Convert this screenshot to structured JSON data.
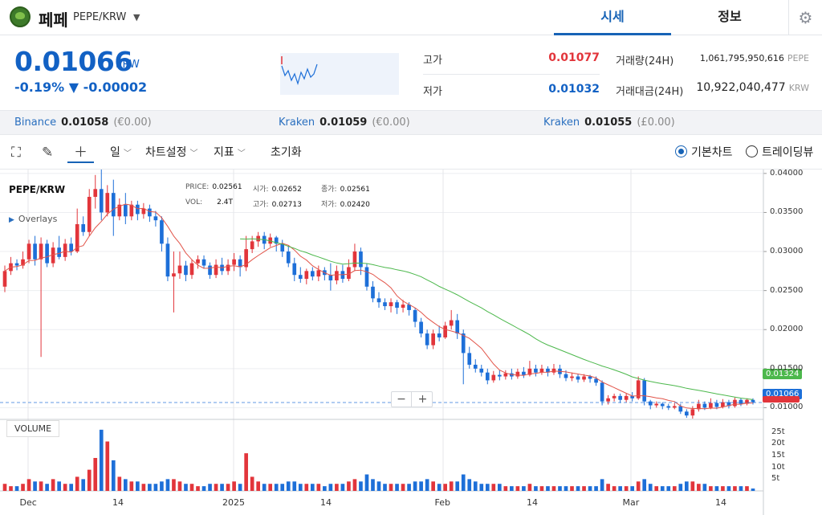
{
  "header": {
    "coin_name": "페페",
    "pair": "PEPE/KRW",
    "tabs": [
      "시세",
      "정보"
    ]
  },
  "price": {
    "current": "0.01066",
    "unit": "KRW",
    "change": "-0.19% ▼ -0.00002"
  },
  "stats": {
    "high_label": "고가",
    "high_value": "0.01077",
    "low_label": "저가",
    "low_value": "0.01032",
    "vol_label": "거래량(24H)",
    "vol_value": "1,061,795,950,616",
    "vol_unit": "PEPE",
    "amount_label": "거래대금(24H)",
    "amount_value": "10,922,040,477",
    "amount_unit": "KRW"
  },
  "exchanges": [
    {
      "name": "Binance",
      "price": "0.01058",
      "fx": "(€0.00)"
    },
    {
      "name": "Kraken",
      "price": "0.01059",
      "fx": "(€0.00)"
    },
    {
      "name": "Kraken",
      "price": "0.01055",
      "fx": "(£0.00)"
    }
  ],
  "toolbar": {
    "interval": "일",
    "chart_settings": "차트설정",
    "indicators": "지표",
    "reset": "초기화",
    "basic_chart": "기본차트",
    "tradingview": "트레이딩뷰"
  },
  "legend": {
    "pair": "PEPE/KRW",
    "overlays": "Overlays",
    "price_label": "PRICE:",
    "price_value": "0.02561",
    "open_label": "시가:",
    "open_value": "0.02652",
    "close_label": "종가:",
    "close_value": "0.02561",
    "vol_label": "VOL:",
    "vol_value": "2.4T",
    "high_label": "고가:",
    "high_value": "0.02713",
    "low_label": "저가:",
    "low_value": "0.02420",
    "volume_panel": "VOLUME"
  },
  "tags": {
    "ma_long": "0.01324",
    "current": "0.01066"
  },
  "colors": {
    "up": "#e2353b",
    "down": "#1d6fd8",
    "ma_short": "#e2554a",
    "ma_long": "#4cb84c",
    "accent": "#1763b6"
  },
  "chart_data": {
    "type": "candlestick",
    "y_ticks": [
      "0.04000",
      "0.03500",
      "0.03000",
      "0.02500",
      "0.02000",
      "0.01500",
      "0.01000"
    ],
    "ylim": [
      0.0085,
      0.0405
    ],
    "volume_ticks": [
      "25t",
      "20t",
      "15t",
      "10t",
      "5t"
    ],
    "x_ticks": [
      "Dec",
      "14",
      "2025",
      "14",
      "Feb",
      "14",
      "Mar",
      "14"
    ],
    "candles": [
      {
        "o": 0.0255,
        "c": 0.0275,
        "h": 0.0282,
        "l": 0.0248,
        "v": 3
      },
      {
        "o": 0.0275,
        "c": 0.0285,
        "h": 0.0293,
        "l": 0.027,
        "v": 2
      },
      {
        "o": 0.0285,
        "c": 0.0282,
        "h": 0.029,
        "l": 0.0276,
        "v": 2
      },
      {
        "o": 0.0282,
        "c": 0.029,
        "h": 0.03,
        "l": 0.0278,
        "v": 3
      },
      {
        "o": 0.029,
        "c": 0.031,
        "h": 0.0315,
        "l": 0.0285,
        "v": 5
      },
      {
        "o": 0.031,
        "c": 0.029,
        "h": 0.032,
        "l": 0.0282,
        "v": 4
      },
      {
        "o": 0.029,
        "c": 0.031,
        "h": 0.0318,
        "l": 0.0165,
        "v": 4
      },
      {
        "o": 0.031,
        "c": 0.0285,
        "h": 0.0315,
        "l": 0.028,
        "v": 3
      },
      {
        "o": 0.0285,
        "c": 0.0305,
        "h": 0.0312,
        "l": 0.028,
        "v": 5
      },
      {
        "o": 0.0305,
        "c": 0.0293,
        "h": 0.032,
        "l": 0.029,
        "v": 4
      },
      {
        "o": 0.0293,
        "c": 0.031,
        "h": 0.0316,
        "l": 0.0288,
        "v": 3
      },
      {
        "o": 0.031,
        "c": 0.03,
        "h": 0.0318,
        "l": 0.0295,
        "v": 3
      },
      {
        "o": 0.03,
        "c": 0.0335,
        "h": 0.0355,
        "l": 0.0298,
        "v": 6
      },
      {
        "o": 0.0335,
        "c": 0.0325,
        "h": 0.0345,
        "l": 0.032,
        "v": 5
      },
      {
        "o": 0.0325,
        "c": 0.037,
        "h": 0.038,
        "l": 0.032,
        "v": 9
      },
      {
        "o": 0.037,
        "c": 0.038,
        "h": 0.0398,
        "l": 0.0355,
        "v": 14
      },
      {
        "o": 0.038,
        "c": 0.035,
        "h": 0.0405,
        "l": 0.034,
        "v": 26
      },
      {
        "o": 0.035,
        "c": 0.0375,
        "h": 0.0385,
        "l": 0.0345,
        "v": 21
      },
      {
        "o": 0.0375,
        "c": 0.0345,
        "h": 0.0392,
        "l": 0.032,
        "v": 13
      },
      {
        "o": 0.0345,
        "c": 0.036,
        "h": 0.0368,
        "l": 0.034,
        "v": 6
      },
      {
        "o": 0.036,
        "c": 0.0345,
        "h": 0.0375,
        "l": 0.0335,
        "v": 5
      },
      {
        "o": 0.0345,
        "c": 0.036,
        "h": 0.0365,
        "l": 0.034,
        "v": 4
      },
      {
        "o": 0.036,
        "c": 0.0348,
        "h": 0.0365,
        "l": 0.034,
        "v": 4
      },
      {
        "o": 0.0348,
        "c": 0.0355,
        "h": 0.0362,
        "l": 0.0342,
        "v": 3
      },
      {
        "o": 0.0355,
        "c": 0.0345,
        "h": 0.036,
        "l": 0.0338,
        "v": 3
      },
      {
        "o": 0.0345,
        "c": 0.034,
        "h": 0.0352,
        "l": 0.0332,
        "v": 3
      },
      {
        "o": 0.034,
        "c": 0.031,
        "h": 0.0345,
        "l": 0.03,
        "v": 4
      },
      {
        "o": 0.031,
        "c": 0.0268,
        "h": 0.0318,
        "l": 0.0262,
        "v": 5
      },
      {
        "o": 0.0268,
        "c": 0.0272,
        "h": 0.03,
        "l": 0.0222,
        "v": 5
      },
      {
        "o": 0.0272,
        "c": 0.0282,
        "h": 0.03,
        "l": 0.0265,
        "v": 4
      },
      {
        "o": 0.0282,
        "c": 0.027,
        "h": 0.0288,
        "l": 0.0262,
        "v": 3
      },
      {
        "o": 0.027,
        "c": 0.0285,
        "h": 0.029,
        "l": 0.0265,
        "v": 3
      },
      {
        "o": 0.0285,
        "c": 0.029,
        "h": 0.0295,
        "l": 0.0278,
        "v": 2
      },
      {
        "o": 0.029,
        "c": 0.0282,
        "h": 0.0295,
        "l": 0.0278,
        "v": 2
      },
      {
        "o": 0.0282,
        "c": 0.027,
        "h": 0.0286,
        "l": 0.0265,
        "v": 3
      },
      {
        "o": 0.027,
        "c": 0.0283,
        "h": 0.029,
        "l": 0.0266,
        "v": 3
      },
      {
        "o": 0.0283,
        "c": 0.0275,
        "h": 0.0292,
        "l": 0.027,
        "v": 3
      },
      {
        "o": 0.0275,
        "c": 0.0283,
        "h": 0.029,
        "l": 0.027,
        "v": 3
      },
      {
        "o": 0.0283,
        "c": 0.029,
        "h": 0.0298,
        "l": 0.0275,
        "v": 4
      },
      {
        "o": 0.029,
        "c": 0.028,
        "h": 0.0295,
        "l": 0.0268,
        "v": 3
      },
      {
        "o": 0.028,
        "c": 0.0303,
        "h": 0.032,
        "l": 0.0275,
        "v": 16
      },
      {
        "o": 0.0303,
        "c": 0.0313,
        "h": 0.032,
        "l": 0.0298,
        "v": 6
      },
      {
        "o": 0.0313,
        "c": 0.032,
        "h": 0.0325,
        "l": 0.0306,
        "v": 4
      },
      {
        "o": 0.032,
        "c": 0.031,
        "h": 0.0325,
        "l": 0.0303,
        "v": 3
      },
      {
        "o": 0.031,
        "c": 0.0318,
        "h": 0.0323,
        "l": 0.0306,
        "v": 3
      },
      {
        "o": 0.0318,
        "c": 0.031,
        "h": 0.032,
        "l": 0.03,
        "v": 3
      },
      {
        "o": 0.031,
        "c": 0.03,
        "h": 0.0315,
        "l": 0.0293,
        "v": 3
      },
      {
        "o": 0.03,
        "c": 0.0285,
        "h": 0.0308,
        "l": 0.028,
        "v": 4
      },
      {
        "o": 0.0285,
        "c": 0.027,
        "h": 0.0292,
        "l": 0.0262,
        "v": 4
      },
      {
        "o": 0.027,
        "c": 0.0265,
        "h": 0.028,
        "l": 0.026,
        "v": 3
      },
      {
        "o": 0.0265,
        "c": 0.0275,
        "h": 0.0278,
        "l": 0.0258,
        "v": 3
      },
      {
        "o": 0.0275,
        "c": 0.0268,
        "h": 0.028,
        "l": 0.0263,
        "v": 3
      },
      {
        "o": 0.0268,
        "c": 0.0276,
        "h": 0.0282,
        "l": 0.0262,
        "v": 3
      },
      {
        "o": 0.0276,
        "c": 0.027,
        "h": 0.028,
        "l": 0.0263,
        "v": 2
      },
      {
        "o": 0.027,
        "c": 0.0263,
        "h": 0.0285,
        "l": 0.025,
        "v": 3
      },
      {
        "o": 0.0263,
        "c": 0.0275,
        "h": 0.0282,
        "l": 0.0258,
        "v": 3
      },
      {
        "o": 0.0275,
        "c": 0.0265,
        "h": 0.0283,
        "l": 0.026,
        "v": 3
      },
      {
        "o": 0.0265,
        "c": 0.028,
        "h": 0.029,
        "l": 0.0262,
        "v": 4
      },
      {
        "o": 0.028,
        "c": 0.03,
        "h": 0.031,
        "l": 0.0275,
        "v": 5
      },
      {
        "o": 0.03,
        "c": 0.028,
        "h": 0.0305,
        "l": 0.027,
        "v": 4
      },
      {
        "o": 0.028,
        "c": 0.0255,
        "h": 0.0285,
        "l": 0.025,
        "v": 7
      },
      {
        "o": 0.0255,
        "c": 0.024,
        "h": 0.0262,
        "l": 0.0235,
        "v": 5
      },
      {
        "o": 0.024,
        "c": 0.0235,
        "h": 0.0248,
        "l": 0.0228,
        "v": 4
      },
      {
        "o": 0.0235,
        "c": 0.023,
        "h": 0.024,
        "l": 0.0225,
        "v": 3
      },
      {
        "o": 0.023,
        "c": 0.0235,
        "h": 0.024,
        "l": 0.0222,
        "v": 3
      },
      {
        "o": 0.0235,
        "c": 0.0228,
        "h": 0.0238,
        "l": 0.022,
        "v": 3
      },
      {
        "o": 0.0228,
        "c": 0.0232,
        "h": 0.0238,
        "l": 0.0222,
        "v": 3
      },
      {
        "o": 0.0232,
        "c": 0.0225,
        "h": 0.0235,
        "l": 0.0218,
        "v": 3
      },
      {
        "o": 0.0225,
        "c": 0.021,
        "h": 0.0228,
        "l": 0.0203,
        "v": 4
      },
      {
        "o": 0.021,
        "c": 0.0195,
        "h": 0.0215,
        "l": 0.019,
        "v": 4
      },
      {
        "o": 0.0195,
        "c": 0.018,
        "h": 0.02,
        "l": 0.0175,
        "v": 5
      },
      {
        "o": 0.018,
        "c": 0.0195,
        "h": 0.02,
        "l": 0.0175,
        "v": 4
      },
      {
        "o": 0.0195,
        "c": 0.019,
        "h": 0.0205,
        "l": 0.0185,
        "v": 3
      },
      {
        "o": 0.019,
        "c": 0.0205,
        "h": 0.021,
        "l": 0.0188,
        "v": 3
      },
      {
        "o": 0.0205,
        "c": 0.0212,
        "h": 0.0225,
        "l": 0.02,
        "v": 4
      },
      {
        "o": 0.0212,
        "c": 0.0195,
        "h": 0.022,
        "l": 0.0188,
        "v": 4
      },
      {
        "o": 0.0195,
        "c": 0.017,
        "h": 0.02,
        "l": 0.013,
        "v": 7
      },
      {
        "o": 0.017,
        "c": 0.0155,
        "h": 0.0178,
        "l": 0.015,
        "v": 5
      },
      {
        "o": 0.0155,
        "c": 0.015,
        "h": 0.0162,
        "l": 0.0145,
        "v": 4
      },
      {
        "o": 0.015,
        "c": 0.0145,
        "h": 0.0155,
        "l": 0.014,
        "v": 3
      },
      {
        "o": 0.0145,
        "c": 0.0135,
        "h": 0.015,
        "l": 0.013,
        "v": 3
      },
      {
        "o": 0.0135,
        "c": 0.0142,
        "h": 0.0147,
        "l": 0.0132,
        "v": 3
      },
      {
        "o": 0.0142,
        "c": 0.014,
        "h": 0.0148,
        "l": 0.0135,
        "v": 3
      },
      {
        "o": 0.014,
        "c": 0.0144,
        "h": 0.0148,
        "l": 0.0136,
        "v": 2
      },
      {
        "o": 0.0144,
        "c": 0.014,
        "h": 0.015,
        "l": 0.0136,
        "v": 2
      },
      {
        "o": 0.014,
        "c": 0.0146,
        "h": 0.015,
        "l": 0.0137,
        "v": 2
      },
      {
        "o": 0.0146,
        "c": 0.0142,
        "h": 0.0152,
        "l": 0.0138,
        "v": 2
      },
      {
        "o": 0.0142,
        "c": 0.015,
        "h": 0.016,
        "l": 0.014,
        "v": 3
      },
      {
        "o": 0.015,
        "c": 0.0145,
        "h": 0.0155,
        "l": 0.014,
        "v": 2
      },
      {
        "o": 0.0145,
        "c": 0.015,
        "h": 0.0155,
        "l": 0.0142,
        "v": 2
      },
      {
        "o": 0.015,
        "c": 0.0145,
        "h": 0.0153,
        "l": 0.014,
        "v": 2
      },
      {
        "o": 0.0145,
        "c": 0.015,
        "h": 0.0156,
        "l": 0.0142,
        "v": 2
      },
      {
        "o": 0.015,
        "c": 0.0143,
        "h": 0.0155,
        "l": 0.0138,
        "v": 2
      },
      {
        "o": 0.0143,
        "c": 0.0138,
        "h": 0.0148,
        "l": 0.0134,
        "v": 2
      },
      {
        "o": 0.0138,
        "c": 0.014,
        "h": 0.0145,
        "l": 0.0134,
        "v": 2
      },
      {
        "o": 0.014,
        "c": 0.0136,
        "h": 0.0143,
        "l": 0.0132,
        "v": 2
      },
      {
        "o": 0.0136,
        "c": 0.014,
        "h": 0.0143,
        "l": 0.0133,
        "v": 2
      },
      {
        "o": 0.014,
        "c": 0.0137,
        "h": 0.0142,
        "l": 0.0132,
        "v": 2
      },
      {
        "o": 0.0137,
        "c": 0.0132,
        "h": 0.014,
        "l": 0.0128,
        "v": 2
      },
      {
        "o": 0.0132,
        "c": 0.0108,
        "h": 0.0135,
        "l": 0.0103,
        "v": 5
      },
      {
        "o": 0.0108,
        "c": 0.0112,
        "h": 0.0116,
        "l": 0.0104,
        "v": 3
      },
      {
        "o": 0.0112,
        "c": 0.0115,
        "h": 0.0118,
        "l": 0.0108,
        "v": 2
      },
      {
        "o": 0.0115,
        "c": 0.011,
        "h": 0.0118,
        "l": 0.0106,
        "v": 2
      },
      {
        "o": 0.011,
        "c": 0.0115,
        "h": 0.0118,
        "l": 0.0107,
        "v": 2
      },
      {
        "o": 0.0115,
        "c": 0.0112,
        "h": 0.012,
        "l": 0.0108,
        "v": 2
      },
      {
        "o": 0.0112,
        "c": 0.0135,
        "h": 0.014,
        "l": 0.011,
        "v": 4
      },
      {
        "o": 0.0135,
        "c": 0.0108,
        "h": 0.0138,
        "l": 0.0103,
        "v": 5
      },
      {
        "o": 0.0108,
        "c": 0.0103,
        "h": 0.011,
        "l": 0.0098,
        "v": 3
      },
      {
        "o": 0.0103,
        "c": 0.0105,
        "h": 0.0108,
        "l": 0.01,
        "v": 2
      },
      {
        "o": 0.0105,
        "c": 0.0102,
        "h": 0.0107,
        "l": 0.0098,
        "v": 2
      },
      {
        "o": 0.0102,
        "c": 0.01,
        "h": 0.0105,
        "l": 0.0097,
        "v": 2
      },
      {
        "o": 0.01,
        "c": 0.0102,
        "h": 0.0106,
        "l": 0.0098,
        "v": 2
      },
      {
        "o": 0.0102,
        "c": 0.0095,
        "h": 0.0105,
        "l": 0.0092,
        "v": 3
      },
      {
        "o": 0.0095,
        "c": 0.009,
        "h": 0.0098,
        "l": 0.0087,
        "v": 4
      },
      {
        "o": 0.009,
        "c": 0.0098,
        "h": 0.0102,
        "l": 0.0086,
        "v": 4
      },
      {
        "o": 0.0098,
        "c": 0.0105,
        "h": 0.011,
        "l": 0.0095,
        "v": 3
      },
      {
        "o": 0.0105,
        "c": 0.01,
        "h": 0.0108,
        "l": 0.0097,
        "v": 3
      },
      {
        "o": 0.01,
        "c": 0.0106,
        "h": 0.0112,
        "l": 0.0098,
        "v": 2
      },
      {
        "o": 0.0106,
        "c": 0.0101,
        "h": 0.011,
        "l": 0.0098,
        "v": 2
      },
      {
        "o": 0.0101,
        "c": 0.0107,
        "h": 0.0111,
        "l": 0.0099,
        "v": 2
      },
      {
        "o": 0.0107,
        "c": 0.0102,
        "h": 0.011,
        "l": 0.0099,
        "v": 2
      },
      {
        "o": 0.0102,
        "c": 0.011,
        "h": 0.0113,
        "l": 0.01,
        "v": 2
      },
      {
        "o": 0.011,
        "c": 0.0105,
        "h": 0.0112,
        "l": 0.0102,
        "v": 2
      },
      {
        "o": 0.0105,
        "c": 0.011,
        "h": 0.0112,
        "l": 0.0103,
        "v": 2
      },
      {
        "o": 0.011,
        "c": 0.0107,
        "h": 0.0112,
        "l": 0.0104,
        "v": 1
      }
    ]
  }
}
